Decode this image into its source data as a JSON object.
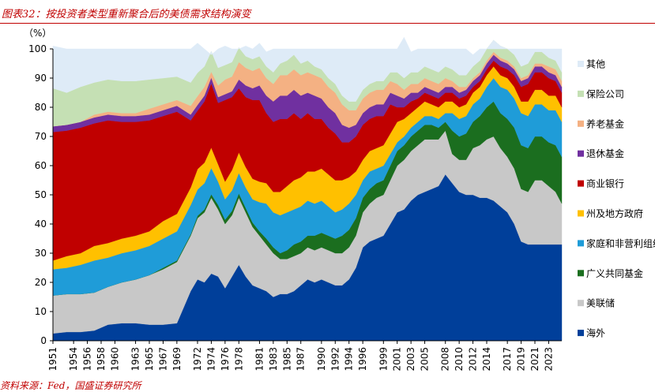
{
  "header": {
    "title": "图表32：按投资者类型重新聚合后的美债需求结构演变"
  },
  "source_note": "资料来源：Fed，国盛证券研究所",
  "chart_data": {
    "type": "area",
    "stacked": true,
    "title": "图表32：按投资者类型重新聚合后的美债需求结构演变",
    "ylabel": "（%）",
    "xlabel": "",
    "ylim": [
      0,
      100
    ],
    "yticks": [
      0,
      10,
      20,
      30,
      40,
      50,
      60,
      70,
      80,
      90,
      100
    ],
    "xticks": [
      "1951",
      "1954",
      "1956",
      "1958",
      "1960",
      "1963",
      "1965",
      "1967",
      "1969",
      "1972",
      "1974",
      "1976",
      "1978",
      "1981",
      "1983",
      "1985",
      "1987",
      "1990",
      "1992",
      "1994",
      "1996",
      "1999",
      "2001",
      "2003",
      "2005",
      "2008",
      "2010",
      "2012",
      "2014",
      "2017",
      "2019",
      "2021",
      "2023"
    ],
    "xlim": [
      1951,
      2024.9
    ],
    "legend_position": "right",
    "years": [
      1951,
      1953,
      1955,
      1957,
      1959,
      1961,
      1963,
      1965,
      1967,
      1969,
      1971,
      1972,
      1973,
      1974,
      1975,
      1976,
      1977,
      1978,
      1979,
      1980,
      1981,
      1982,
      1983,
      1984,
      1985,
      1986,
      1987,
      1988,
      1989,
      1990,
      1991,
      1992,
      1993,
      1994,
      1995,
      1996,
      1997,
      1998,
      1999,
      2000,
      2001,
      2002,
      2003,
      2004,
      2005,
      2006,
      2007,
      2008,
      2009,
      2010,
      2011,
      2012,
      2013,
      2014,
      2015,
      2016,
      2017,
      2018,
      2019,
      2020,
      2021,
      2022,
      2023,
      2024,
      2024.9
    ],
    "series": [
      {
        "name": "海外",
        "color": "#003f9a",
        "values": [
          2.5,
          3,
          3,
          3.5,
          5.5,
          6,
          6,
          5.5,
          5.5,
          6,
          17,
          21,
          20,
          23,
          22,
          18,
          22,
          26,
          22,
          19,
          18,
          17,
          15,
          16,
          16,
          17,
          19,
          21,
          20,
          21,
          20,
          19,
          19,
          21,
          25,
          32,
          34,
          35,
          36,
          40,
          44,
          45,
          48,
          50,
          51,
          52,
          53,
          57,
          54,
          51,
          50,
          50,
          49,
          49,
          48,
          46,
          44,
          40,
          34,
          33,
          33,
          33,
          33,
          33,
          33
        ]
      },
      {
        "name": "美联储",
        "color": "#c8c8c8",
        "values": [
          13,
          13,
          13,
          13,
          13,
          14,
          15,
          17,
          19,
          21,
          19,
          21,
          24,
          26,
          23,
          22,
          21,
          23,
          22,
          20,
          18,
          16,
          15,
          12,
          12,
          12,
          11,
          11,
          11,
          11,
          11,
          11,
          11,
          11,
          11,
          12,
          13,
          14,
          14,
          15,
          16,
          17,
          17,
          17,
          18,
          17,
          16,
          15,
          10,
          11,
          12,
          16,
          18,
          20,
          22,
          20,
          19,
          19,
          18,
          18,
          22,
          22,
          20,
          18,
          14
        ]
      },
      {
        "name": "广义共同基金",
        "color": "#1b6e1f",
        "values": [
          0,
          0,
          0,
          0,
          0,
          0,
          0,
          0,
          0.5,
          0.5,
          0.5,
          0.8,
          1,
          1.2,
          1.5,
          1.5,
          1.5,
          1.5,
          1.5,
          1.5,
          1.5,
          2,
          2,
          2,
          3,
          4,
          4,
          4,
          5,
          5,
          5,
          5,
          6,
          6,
          6,
          5,
          5,
          5,
          5,
          5,
          5,
          5,
          5,
          5,
          5,
          5,
          4,
          3,
          8,
          8,
          9,
          9,
          10,
          11,
          12,
          12,
          13,
          14,
          15,
          15,
          15,
          15,
          15,
          16,
          16
        ]
      },
      {
        "name": "家庭和非营利组织",
        "color": "#1f9cd8",
        "values": [
          9,
          9,
          10,
          11,
          10,
          10,
          10,
          10,
          10,
          10,
          10,
          9,
          9,
          9,
          8,
          7,
          7,
          7,
          7,
          8,
          10,
          12,
          12,
          13,
          13,
          12,
          12,
          12,
          11,
          11,
          10,
          9,
          9,
          9,
          8,
          6,
          6,
          5,
          5,
          4,
          3,
          3,
          3,
          3,
          3,
          3,
          3,
          3,
          6,
          6,
          6,
          6,
          6,
          7,
          8,
          9,
          10,
          10,
          11,
          11,
          11,
          11,
          11,
          12,
          12
        ]
      },
      {
        "name": "州及地方政府",
        "color": "#ffc000",
        "values": [
          3,
          4,
          4,
          5,
          5,
          5,
          5,
          5,
          6,
          6,
          6,
          7,
          7,
          7,
          6,
          6,
          7,
          7,
          7,
          7,
          7,
          7,
          7,
          8,
          9,
          10,
          10,
          10,
          11,
          11,
          11,
          11,
          10,
          9,
          8,
          7,
          7,
          7,
          7,
          7,
          7,
          6,
          5,
          5,
          5,
          4,
          4,
          4,
          4,
          4,
          4,
          4,
          4,
          4,
          4,
          4,
          4,
          4,
          4,
          5,
          5,
          5,
          5,
          5,
          5
        ]
      },
      {
        "name": "商业银行",
        "color": "#c00000",
        "values": [
          44,
          43,
          43,
          42,
          42,
          40,
          39,
          38,
          36,
          35,
          23,
          20,
          21,
          22,
          21,
          28,
          25,
          22,
          24,
          27,
          28,
          24,
          24,
          25,
          23,
          23,
          20,
          20,
          18,
          17,
          16,
          16,
          13,
          12,
          12,
          12,
          11,
          11,
          10,
          10,
          5,
          4,
          4,
          3,
          3,
          3,
          3,
          3,
          3,
          3,
          3,
          2,
          2,
          2,
          2,
          3,
          3,
          4,
          5,
          6,
          6,
          6,
          6,
          5,
          5
        ]
      },
      {
        "name": "退休基金",
        "color": "#7030a0",
        "values": [
          2,
          2,
          2,
          2,
          2,
          2,
          2,
          2,
          2,
          2,
          2,
          2,
          2,
          2,
          2,
          2,
          2,
          3,
          4,
          4,
          5,
          6,
          7,
          8,
          8,
          8,
          8,
          7,
          8,
          7,
          7,
          7,
          6,
          5,
          4,
          4,
          4,
          4,
          4,
          4,
          4,
          3,
          3,
          2,
          2,
          2,
          2,
          2,
          2,
          2,
          2,
          2,
          2,
          2,
          2,
          2,
          2,
          2,
          2,
          2,
          2,
          2,
          2,
          2,
          2
        ]
      },
      {
        "name": "养老基金",
        "color": "#f4b183",
        "values": [
          0,
          0,
          0,
          1,
          1,
          1,
          1,
          2,
          2,
          2,
          3,
          3,
          3,
          2,
          4,
          5,
          5,
          6,
          6,
          6,
          6,
          6,
          6,
          7,
          7,
          7,
          7,
          7,
          7,
          7,
          7,
          7,
          7,
          6,
          5,
          5,
          5,
          5,
          5,
          4,
          4,
          3,
          3,
          3,
          3,
          3,
          3,
          3,
          2,
          2,
          1,
          1,
          1,
          1,
          1,
          1,
          1,
          1,
          1,
          1,
          1,
          1,
          2,
          2,
          2
        ]
      },
      {
        "name": "保险公司",
        "color": "#c5e0b4",
        "values": [
          13,
          11,
          12,
          11,
          11,
          11,
          11,
          10,
          9,
          8,
          8,
          8,
          7,
          7,
          6,
          5,
          5,
          5,
          4,
          4,
          4,
          4,
          4,
          4,
          5,
          5,
          4,
          4,
          3,
          3,
          3,
          3,
          3,
          3,
          3,
          3,
          3,
          3,
          3,
          3,
          4,
          4,
          4,
          4,
          4,
          4,
          4,
          4,
          4,
          4,
          4,
          4,
          4,
          4,
          4,
          4,
          4,
          4,
          4,
          4,
          4,
          4,
          3,
          3,
          3
        ]
      },
      {
        "name": "其他",
        "color": "#deebf7",
        "values": [
          14.5,
          15,
          13,
          11.5,
          10.5,
          11,
          11,
          10.5,
          10,
          9.5,
          11.5,
          10.2,
          6,
          -1.2,
          6.5,
          6.5,
          4.5,
          -0.5,
          3.5,
          3.5,
          4.5,
          5,
          8,
          5,
          4,
          2,
          5,
          4,
          6,
          7,
          10,
          12,
          16,
          18,
          18,
          14,
          12,
          11,
          11,
          8,
          8,
          14,
          7,
          8,
          6,
          7,
          8,
          6,
          7,
          9,
          9,
          4,
          4,
          0,
          -3,
          -1,
          0,
          2,
          6,
          5,
          1,
          1,
          3,
          4,
          8
        ]
      }
    ]
  }
}
